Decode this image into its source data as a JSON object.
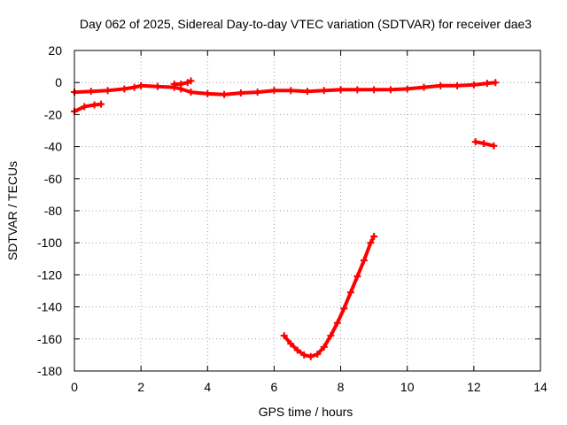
{
  "chart_data": {
    "type": "line",
    "title": "Day 062 of 2025, Sidereal Day-to-day VTEC variation (SDTVAR) for receiver dae3",
    "xlabel": "GPS time / hours",
    "ylabel": "SDTVAR / TECUs",
    "xlim": [
      0,
      14
    ],
    "ylim": [
      -180,
      20
    ],
    "xticks": [
      0,
      2,
      4,
      6,
      8,
      10,
      12,
      14
    ],
    "yticks": [
      20,
      0,
      -20,
      -40,
      -60,
      -80,
      -100,
      -120,
      -140,
      -160,
      -180
    ],
    "grid": true,
    "legend": "none",
    "color": "#ff0000",
    "series": [
      {
        "name": "main",
        "points": [
          [
            0.0,
            -6
          ],
          [
            0.5,
            -5.5
          ],
          [
            1.0,
            -5
          ],
          [
            1.5,
            -4
          ],
          [
            1.8,
            -3
          ],
          [
            2.0,
            -2
          ],
          [
            2.5,
            -2.5
          ],
          [
            3.0,
            -3
          ],
          [
            3.2,
            -4
          ],
          [
            3.5,
            -6
          ],
          [
            4.0,
            -7
          ],
          [
            4.5,
            -7.5
          ],
          [
            5.0,
            -6.5
          ],
          [
            5.5,
            -6
          ],
          [
            6.0,
            -5
          ],
          [
            6.5,
            -5
          ],
          [
            7.0,
            -5.5
          ],
          [
            7.5,
            -5
          ],
          [
            8.0,
            -4.5
          ],
          [
            8.5,
            -4.5
          ],
          [
            9.0,
            -4.5
          ],
          [
            9.5,
            -4.5
          ],
          [
            10.0,
            -4
          ],
          [
            10.5,
            -3
          ],
          [
            11.0,
            -2
          ],
          [
            11.5,
            -2
          ],
          [
            12.0,
            -1.5
          ],
          [
            12.4,
            -0.5
          ],
          [
            12.65,
            0
          ]
        ]
      },
      {
        "name": "short-low",
        "points": [
          [
            0.0,
            -18
          ],
          [
            0.3,
            -15
          ],
          [
            0.6,
            -14
          ],
          [
            0.8,
            -13.5
          ]
        ]
      },
      {
        "name": "short-bump",
        "points": [
          [
            3.0,
            -1
          ],
          [
            3.2,
            -1
          ],
          [
            3.4,
            0
          ],
          [
            3.5,
            1
          ]
        ]
      },
      {
        "name": "tail",
        "points": [
          [
            12.05,
            -37
          ],
          [
            12.3,
            -38
          ],
          [
            12.6,
            -39.5
          ]
        ]
      },
      {
        "name": "arc",
        "points": [
          [
            6.3,
            -158
          ],
          [
            6.5,
            -163
          ],
          [
            6.7,
            -167
          ],
          [
            6.9,
            -170
          ],
          [
            7.1,
            -171
          ],
          [
            7.3,
            -169.5
          ],
          [
            7.5,
            -165
          ],
          [
            7.7,
            -158
          ],
          [
            7.9,
            -150
          ],
          [
            8.1,
            -141
          ],
          [
            8.3,
            -131
          ],
          [
            8.5,
            -121
          ],
          [
            8.7,
            -111
          ],
          [
            8.9,
            -100
          ],
          [
            9.0,
            -96
          ]
        ]
      }
    ]
  }
}
